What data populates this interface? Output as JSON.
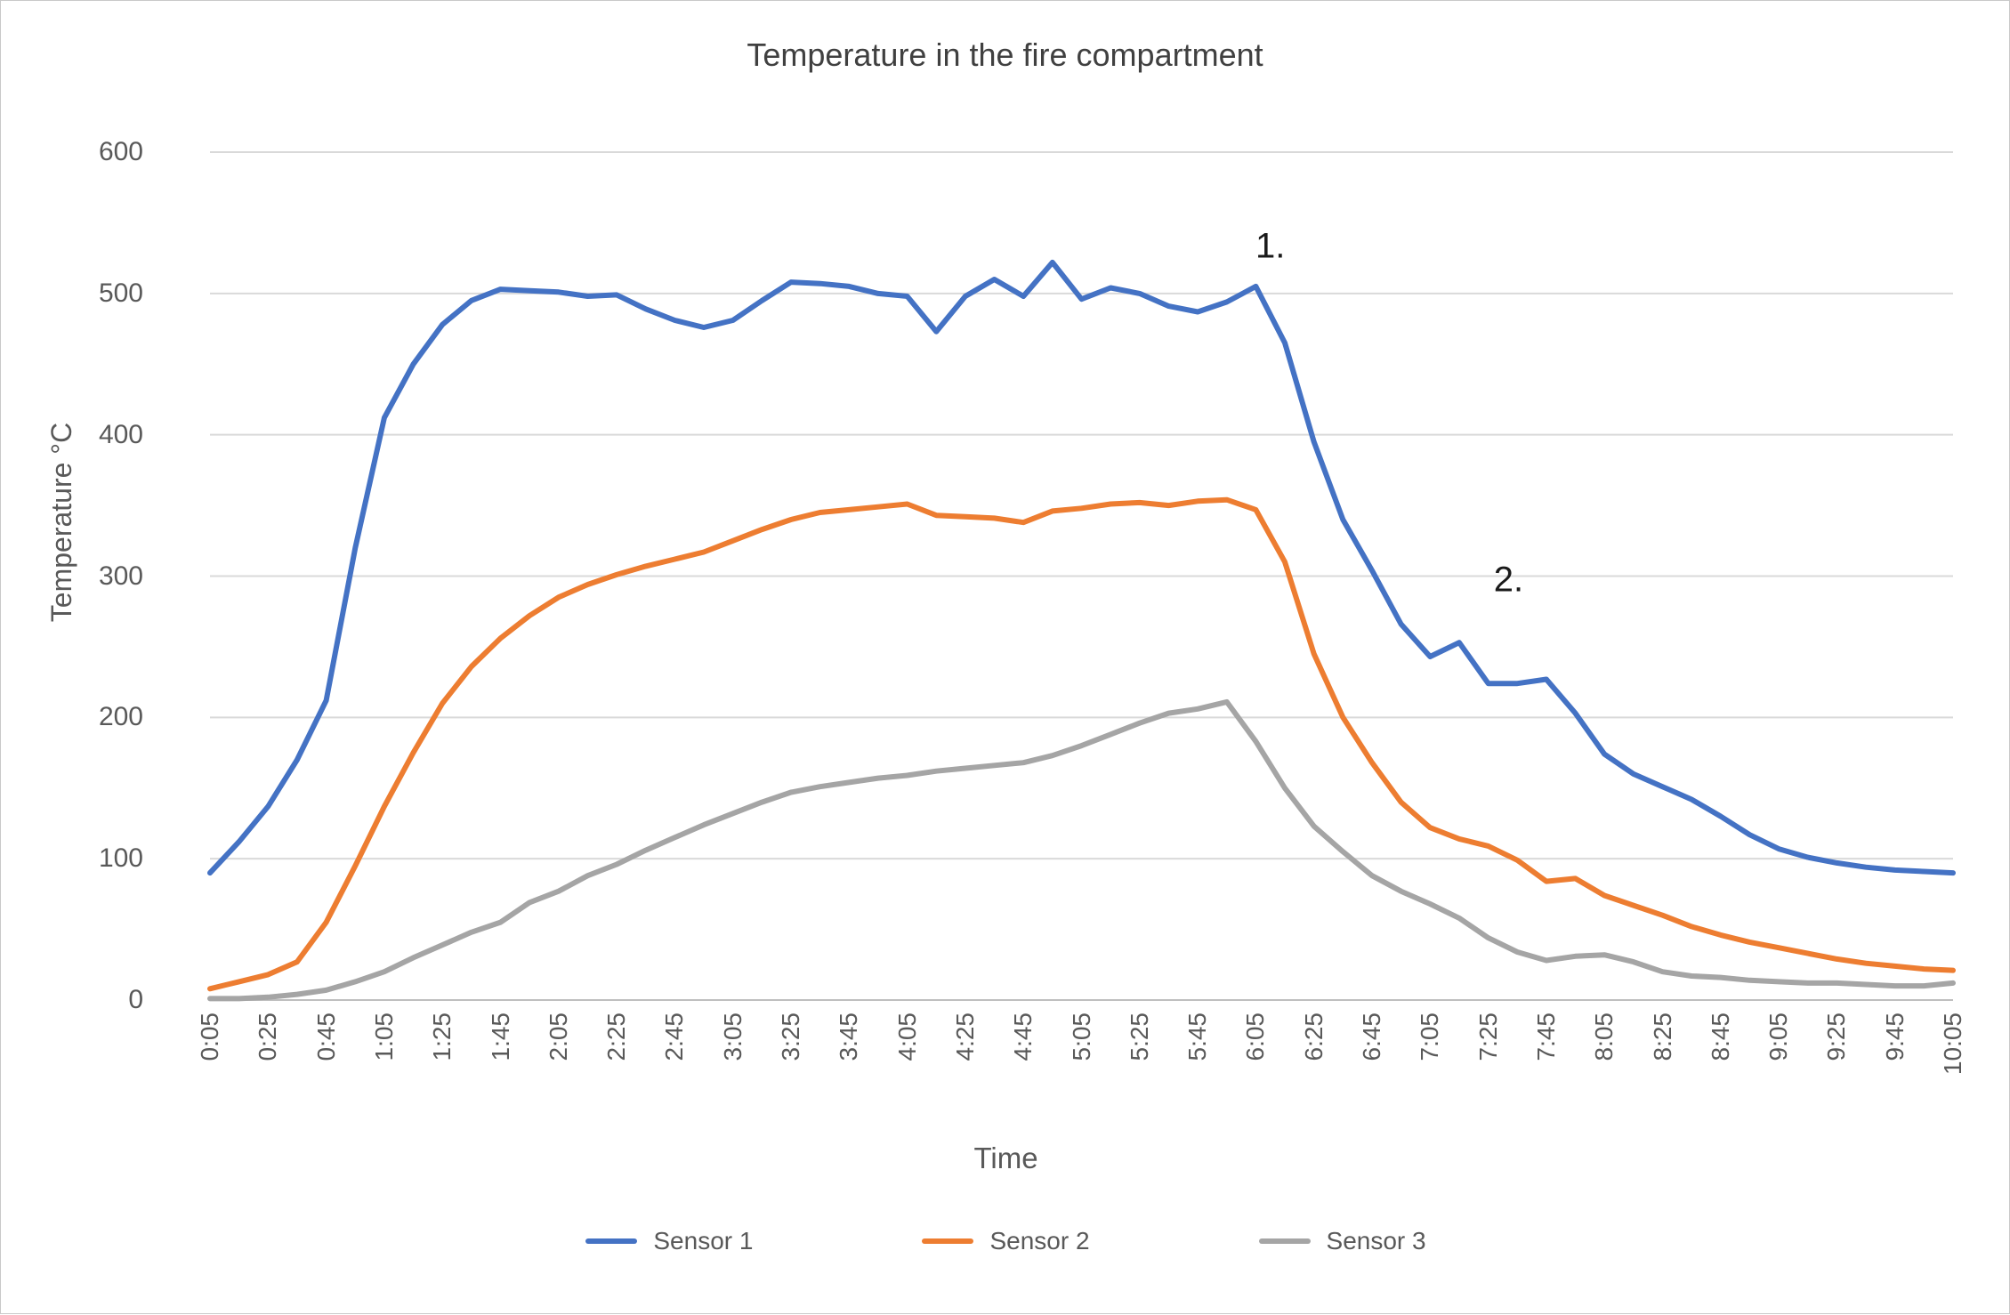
{
  "title": "Temperature in the fire compartment",
  "x_axis": {
    "label": "Time",
    "tick_labels": [
      "0:05",
      "0:25",
      "0:45",
      "1:05",
      "1:25",
      "1:45",
      "2:05",
      "2:25",
      "2:45",
      "3:05",
      "3:25",
      "3:45",
      "4:05",
      "4:25",
      "4:45",
      "5:05",
      "5:25",
      "5:45",
      "6:05",
      "6:25",
      "6:45",
      "7:05",
      "7:25",
      "7:45",
      "8:05",
      "8:25",
      "8:45",
      "9:05",
      "9:25",
      "9:45",
      "10:05"
    ]
  },
  "y_axis": {
    "label": "Temperature °C",
    "tick_labels": [
      "0",
      "100",
      "200",
      "300",
      "400",
      "500",
      "600"
    ],
    "tick_values": [
      0,
      100,
      200,
      300,
      400,
      500,
      600
    ]
  },
  "annotations": [
    {
      "text": "1.",
      "time": "6:10",
      "value": 533
    },
    {
      "text": "2.",
      "time": "7:32",
      "value": 297
    }
  ],
  "colors": {
    "sensor1": "#4472C4",
    "sensor2": "#ED7D31",
    "sensor3": "#A5A5A5",
    "gridline": "#D9D9D9",
    "baseline": "#BFBFBF",
    "text": "#595959",
    "title_text": "#404040",
    "annotation_text": "#1a1a1a"
  },
  "chart_data": {
    "type": "line",
    "title": "Temperature in the fire compartment",
    "xlabel": "Time",
    "ylabel": "Temperature °C",
    "ylim": [
      0,
      600
    ],
    "grid": "horizontal",
    "legend_position": "bottom",
    "sample_interval": "10 min (values read from plot)",
    "x": [
      "0:05",
      "0:15",
      "0:25",
      "0:35",
      "0:45",
      "0:55",
      "1:05",
      "1:15",
      "1:25",
      "1:35",
      "1:45",
      "1:55",
      "2:05",
      "2:15",
      "2:25",
      "2:35",
      "2:45",
      "2:55",
      "3:05",
      "3:15",
      "3:25",
      "3:35",
      "3:45",
      "3:55",
      "4:05",
      "4:15",
      "4:25",
      "4:35",
      "4:45",
      "4:55",
      "5:05",
      "5:15",
      "5:25",
      "5:35",
      "5:45",
      "5:55",
      "6:05",
      "6:15",
      "6:25",
      "6:35",
      "6:45",
      "6:55",
      "7:05",
      "7:15",
      "7:25",
      "7:35",
      "7:45",
      "7:55",
      "8:05",
      "8:15",
      "8:25",
      "8:35",
      "8:45",
      "8:55",
      "9:05",
      "9:15",
      "9:25",
      "9:35",
      "9:45",
      "9:55",
      "10:05"
    ],
    "series": [
      {
        "name": "Sensor 1",
        "color": "#4472C4",
        "values": [
          90,
          112,
          137,
          170,
          212,
          320,
          412,
          450,
          478,
          495,
          503,
          502,
          501,
          498,
          499,
          489,
          481,
          476,
          481,
          495,
          508,
          507,
          505,
          500,
          498,
          473,
          498,
          510,
          498,
          522,
          496,
          504,
          500,
          491,
          487,
          494,
          505,
          465,
          395,
          340,
          304,
          266,
          243,
          253,
          224,
          224,
          227,
          203,
          174,
          160,
          151,
          142,
          130,
          117,
          107,
          101,
          97,
          94,
          92,
          91,
          90
        ]
      },
      {
        "name": "Sensor 2",
        "color": "#ED7D31",
        "values": [
          8,
          13,
          18,
          27,
          55,
          95,
          137,
          175,
          210,
          236,
          256,
          272,
          285,
          294,
          301,
          307,
          312,
          317,
          325,
          333,
          340,
          345,
          347,
          349,
          351,
          343,
          342,
          341,
          338,
          346,
          348,
          351,
          352,
          350,
          353,
          354,
          347,
          310,
          245,
          200,
          168,
          140,
          122,
          114,
          109,
          99,
          84,
          86,
          74,
          67,
          60,
          52,
          46,
          41,
          37,
          33,
          29,
          26,
          24,
          22,
          21
        ]
      },
      {
        "name": "Sensor 3",
        "color": "#A5A5A5",
        "values": [
          1,
          1,
          2,
          4,
          7,
          13,
          20,
          30,
          39,
          48,
          55,
          69,
          77,
          88,
          96,
          106,
          115,
          124,
          132,
          140,
          147,
          151,
          154,
          157,
          159,
          162,
          164,
          166,
          168,
          173,
          180,
          188,
          196,
          203,
          206,
          211,
          183,
          150,
          123,
          105,
          88,
          77,
          68,
          58,
          44,
          34,
          28,
          31,
          32,
          27,
          20,
          17,
          16,
          14,
          13,
          12,
          12,
          11,
          10,
          10,
          12
        ]
      }
    ]
  }
}
